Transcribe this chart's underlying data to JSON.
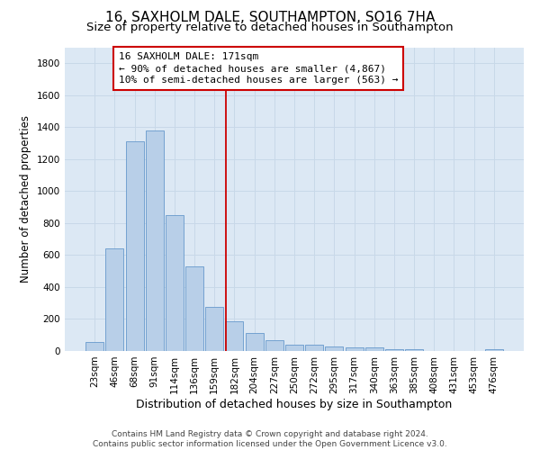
{
  "title": "16, SAXHOLM DALE, SOUTHAMPTON, SO16 7HA",
  "subtitle": "Size of property relative to detached houses in Southampton",
  "xlabel": "Distribution of detached houses by size in Southampton",
  "ylabel": "Number of detached properties",
  "categories": [
    "23sqm",
    "46sqm",
    "68sqm",
    "91sqm",
    "114sqm",
    "136sqm",
    "159sqm",
    "182sqm",
    "204sqm",
    "227sqm",
    "250sqm",
    "272sqm",
    "295sqm",
    "317sqm",
    "340sqm",
    "363sqm",
    "385sqm",
    "408sqm",
    "431sqm",
    "453sqm",
    "476sqm"
  ],
  "values": [
    55,
    640,
    1310,
    1380,
    850,
    530,
    275,
    185,
    110,
    65,
    40,
    38,
    30,
    25,
    20,
    14,
    10,
    0,
    0,
    0,
    14
  ],
  "bar_color": "#b8cfe8",
  "bar_edge_color": "#6699cc",
  "vline_x": 6.575,
  "annotation_text": "16 SAXHOLM DALE: 171sqm\n← 90% of detached houses are smaller (4,867)\n10% of semi-detached houses are larger (563) →",
  "annotation_box_color": "#ffffff",
  "annotation_box_edge_color": "#cc0000",
  "vline_color": "#cc0000",
  "ylim": [
    0,
    1900
  ],
  "yticks": [
    0,
    200,
    400,
    600,
    800,
    1000,
    1200,
    1400,
    1600,
    1800
  ],
  "grid_color": "#c8d8e8",
  "background_color": "#dce8f4",
  "footer_line1": "Contains HM Land Registry data © Crown copyright and database right 2024.",
  "footer_line2": "Contains public sector information licensed under the Open Government Licence v3.0.",
  "title_fontsize": 11,
  "subtitle_fontsize": 9.5,
  "xlabel_fontsize": 9,
  "ylabel_fontsize": 8.5,
  "tick_fontsize": 7.5,
  "ann_fontsize": 8,
  "footer_fontsize": 6.5
}
